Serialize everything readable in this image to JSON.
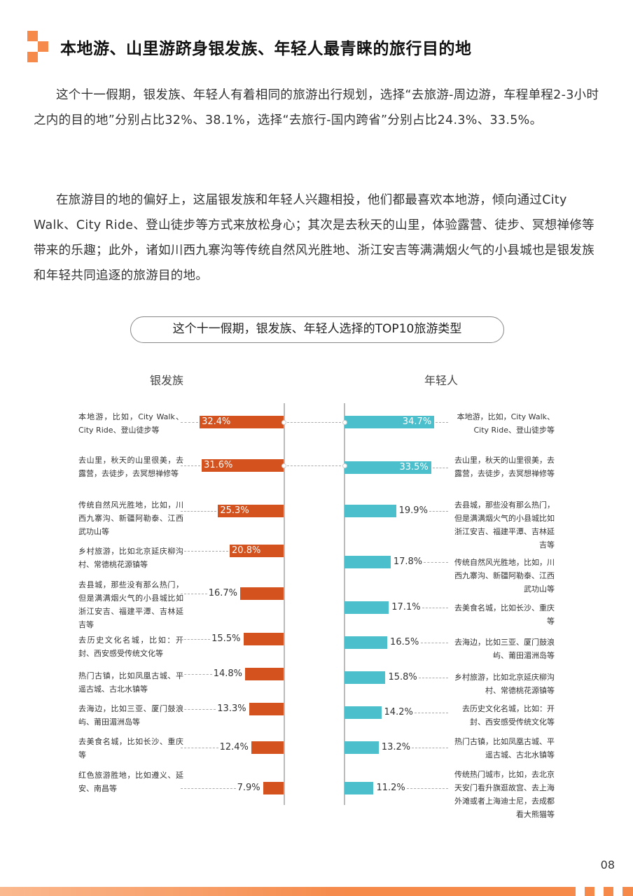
{
  "header": {
    "title": "本地游、山里游跻身银发族、年轻人最青睐的旅行目的地",
    "accent_color": "#f58a4b"
  },
  "paragraphs": [
    "这个十一假期，银发族、年轻人有着相同的旅游出行规划，选择“去旅游-周边游，车程单程2-3小时之内的目的地”分别占比32%、38.1%，选择“去旅行-国内跨省”分别占比24.3%、33.5%。",
    "在旅游目的地的偏好上，这届银发族和年轻人兴趣相投，他们都最喜欢本地游，倾向通过City Walk、City Ride、登山徒步等方式来放松身心；其次是去秋天的山里，体验露营、徒步、冥想禅修等带来的乐趣；此外，诸如川西九寨沟等传统自然风光胜地、浙江安吉等满满烟火气的小县城也是银发族和年轻共同追逐的旅游目的地。"
  ],
  "chart_data": {
    "type": "bar",
    "orientation": "horizontal",
    "title": "这个十一假期，银发族、年轻人选择的TOP10旅游类型",
    "unit": "%",
    "series": [
      {
        "name": "银发族",
        "color": "#d4521e",
        "categories": [
          "本地游，比如，City Walk、City Ride、登山徒步等",
          "去山里，秋天的山里很美，去露营，去徒步，去冥想禅修等",
          "传统自然风光胜地，比如，川西九寨沟、新疆阿勒泰、江西武功山等",
          "乡村旅游，比如北京延庆柳沟村、常德桃花源镇等",
          "去县城，那些没有那么热门，但是满满烟火气的小县城比如浙江安吉、福建平潭、吉林延吉等",
          "去历史文化名城，比如：开封、西安感受传统文化等",
          "热门古镇，比如凤凰古城、平遥古城、古北水镇等",
          "去海边，比如三亚、厦门鼓浪屿、莆田湄洲岛等",
          "去美食名城，比如长沙、重庆等",
          "红色旅游胜地，比如遵义、延安、南昌等"
        ],
        "values": [
          32.4,
          31.6,
          25.3,
          20.8,
          16.7,
          15.5,
          14.8,
          13.3,
          12.4,
          7.9
        ],
        "labels": [
          "32.4%",
          "31.6%",
          "25.3%",
          "20.8%",
          "16.7%",
          "15.5%",
          "14.8%",
          "13.3%",
          "12.4%",
          "7.9%"
        ]
      },
      {
        "name": "年轻人",
        "color": "#4bbfcc",
        "categories": [
          "本地游，比如，City Walk、City Ride、登山徒步等",
          "去山里，秋天的山里很美，去露营，去徒步，去冥想禅修等",
          "去县城，那些没有那么热门，但是满满烟火气的小县城比如浙江安吉、福建平潭、吉林延吉等",
          "传统自然风光胜地，比如，川西九寨沟、新疆阿勒泰、江西武功山等",
          "去美食名城，比如长沙、重庆等",
          "去海边，比如三亚、厦门鼓浪屿、莆田湄洲岛等",
          "乡村旅游，比如北京延庆柳沟村、常德桃花源镇等",
          "去历史文化名城，比如：开封、西安感受传统文化等",
          "热门古镇，比如凤凰古城、平遥古城、古北水镇等",
          "传统热门城市，比如，去北京天安门看升旗逛故宫、去上海外滩或者上海迪士尼，去成都看大熊猫等"
        ],
        "values": [
          34.7,
          33.5,
          19.9,
          17.8,
          17.1,
          16.5,
          15.8,
          14.2,
          13.2,
          11.2
        ],
        "labels": [
          "34.7%",
          "33.5%",
          "19.9%",
          "17.8%",
          "17.1%",
          "16.5%",
          "15.8%",
          "14.2%",
          "13.2%",
          "11.2%"
        ]
      }
    ]
  },
  "footer": {
    "page_number": "08"
  }
}
